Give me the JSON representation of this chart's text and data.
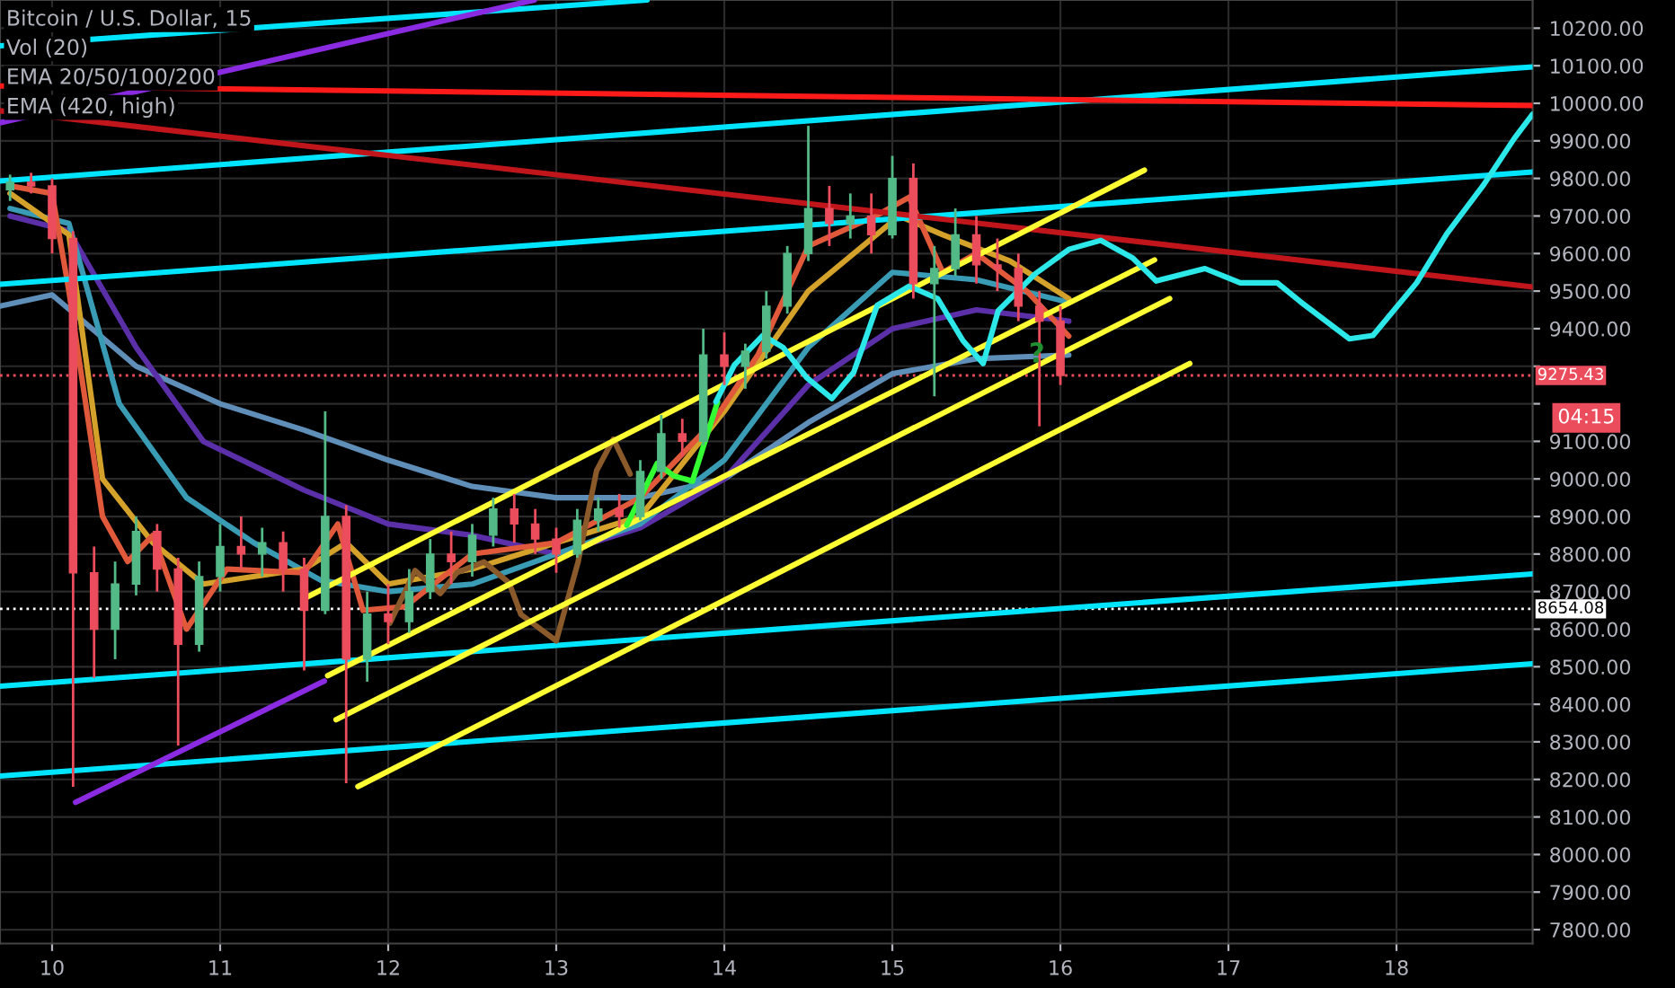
{
  "chart_data": {
    "type": "candlestick",
    "title": "Bitcoin / U.S. Dollar, 15",
    "annotations": [
      "Vol (20)",
      "EMA 20/50/100/200",
      "EMA (420, high)",
      {
        "text": "?",
        "x": 15.86,
        "y": 9330
      },
      "04:15"
    ],
    "x": [
      9.75,
      9.875,
      10.0,
      10.125,
      10.25,
      10.375,
      10.5,
      10.625,
      10.75,
      10.875,
      11.0,
      11.125,
      11.25,
      11.375,
      11.5,
      11.625,
      11.75,
      11.875,
      12.0,
      12.125,
      12.25,
      12.375,
      12.5,
      12.625,
      12.75,
      12.875,
      13.0,
      13.125,
      13.25,
      13.375,
      13.5,
      13.625,
      13.75,
      13.875,
      14.0,
      14.125,
      14.25,
      14.375,
      14.5,
      14.625,
      14.75,
      14.875,
      15.0,
      15.125,
      15.25,
      15.375,
      15.5,
      15.625,
      15.75,
      15.875,
      16.0
    ],
    "ohlc": [
      [
        9770,
        9810,
        9740,
        9790
      ],
      [
        9790,
        9815,
        9760,
        9780
      ],
      [
        9780,
        9800,
        9600,
        9640
      ],
      [
        9640,
        9660,
        8180,
        8750
      ],
      [
        8750,
        8820,
        8470,
        8600
      ],
      [
        8600,
        8780,
        8520,
        8720
      ],
      [
        8720,
        8900,
        8690,
        8860
      ],
      [
        8860,
        8880,
        8700,
        8760
      ],
      [
        8760,
        8790,
        8290,
        8560
      ],
      [
        8560,
        8780,
        8540,
        8740
      ],
      [
        8740,
        8880,
        8700,
        8820
      ],
      [
        8820,
        8900,
        8760,
        8800
      ],
      [
        8800,
        8870,
        8740,
        8830
      ],
      [
        8830,
        8860,
        8700,
        8760
      ],
      [
        8760,
        8790,
        8490,
        8650
      ],
      [
        8650,
        9180,
        8640,
        8900
      ],
      [
        8900,
        8930,
        8190,
        8520
      ],
      [
        8520,
        8700,
        8460,
        8640
      ],
      [
        8640,
        8720,
        8560,
        8620
      ],
      [
        8620,
        8760,
        8590,
        8700
      ],
      [
        8700,
        8840,
        8680,
        8800
      ],
      [
        8800,
        8860,
        8720,
        8780
      ],
      [
        8780,
        8880,
        8740,
        8850
      ],
      [
        8850,
        8950,
        8820,
        8920
      ],
      [
        8920,
        8960,
        8830,
        8880
      ],
      [
        8880,
        8920,
        8800,
        8840
      ],
      [
        8840,
        8870,
        8750,
        8800
      ],
      [
        8800,
        8920,
        8790,
        8890
      ],
      [
        8890,
        8950,
        8860,
        8920
      ],
      [
        8920,
        8960,
        8870,
        8900
      ],
      [
        8900,
        9050,
        8890,
        9020
      ],
      [
        9020,
        9170,
        9000,
        9120
      ],
      [
        9120,
        9160,
        9060,
        9100
      ],
      [
        9100,
        9400,
        9090,
        9330
      ],
      [
        9330,
        9390,
        9250,
        9300
      ],
      [
        9300,
        9360,
        9240,
        9340
      ],
      [
        9340,
        9500,
        9320,
        9460
      ],
      [
        9460,
        9620,
        9440,
        9600
      ],
      [
        9600,
        9940,
        9580,
        9720
      ],
      [
        9720,
        9780,
        9620,
        9680
      ],
      [
        9680,
        9760,
        9640,
        9700
      ],
      [
        9700,
        9760,
        9600,
        9650
      ],
      [
        9650,
        9860,
        9640,
        9800
      ],
      [
        9800,
        9840,
        9480,
        9520
      ],
      [
        9520,
        9620,
        9220,
        9560
      ],
      [
        9560,
        9720,
        9540,
        9650
      ],
      [
        9650,
        9700,
        9520,
        9570
      ],
      [
        9570,
        9640,
        9500,
        9560
      ],
      [
        9560,
        9600,
        9420,
        9460
      ],
      [
        9460,
        9500,
        9140,
        9420
      ],
      [
        9420,
        9460,
        9250,
        9275.43
      ]
    ],
    "colors": [
      "#53b987",
      "#eb4d5c",
      "#eb4d5c",
      "#eb4d5c",
      "#eb4d5c",
      "#53b987",
      "#53b987",
      "#eb4d5c",
      "#eb4d5c",
      "#53b987",
      "#53b987",
      "#eb4d5c",
      "#53b987",
      "#eb4d5c",
      "#eb4d5c",
      "#53b987",
      "#eb4d5c",
      "#53b987",
      "#eb4d5c",
      "#53b987",
      "#53b987",
      "#eb4d5c",
      "#53b987",
      "#53b987",
      "#eb4d5c",
      "#eb4d5c",
      "#eb4d5c",
      "#53b987",
      "#53b987",
      "#eb4d5c",
      "#53b987",
      "#53b987",
      "#eb4d5c",
      "#53b987",
      "#eb4d5c",
      "#53b987",
      "#53b987",
      "#53b987",
      "#53b987",
      "#eb4d5c",
      "#53b987",
      "#eb4d5c",
      "#53b987",
      "#eb4d5c",
      "#53b987",
      "#53b987",
      "#eb4d5c",
      "#eb4d5c",
      "#eb4d5c",
      "#eb4d5c",
      "#eb4d5c"
    ],
    "series": [
      {
        "type": "line",
        "color": "#5f8fb8",
        "x": [
          9.69,
          10.0,
          10.5,
          11.0,
          11.5,
          12.0,
          12.5,
          13.0,
          13.5,
          14.0,
          14.5,
          15.0,
          15.5,
          16.05
        ],
        "values": [
          9460,
          9490,
          9300,
          9200,
          9130,
          9050,
          8980,
          8950,
          8950,
          9000,
          9150,
          9280,
          9320,
          9330
        ]
      },
      {
        "type": "line",
        "color": "#5b2fa8",
        "x": [
          9.75,
          10.1,
          10.5,
          10.9,
          11.5,
          12.0,
          12.5,
          13.0,
          13.5,
          14.0,
          14.5,
          15.0,
          15.5,
          16.05
        ],
        "values": [
          9700,
          9660,
          9350,
          9100,
          8970,
          8880,
          8850,
          8800,
          8870,
          9000,
          9250,
          9400,
          9450,
          9420
        ]
      },
      {
        "type": "line",
        "color": "#3a9bb5",
        "x": [
          9.75,
          10.1,
          10.4,
          10.8,
          11.2,
          11.6,
          12.0,
          12.5,
          13.0,
          13.5,
          14.0,
          14.5,
          15.0,
          15.5,
          16.05
        ],
        "values": [
          9720,
          9680,
          9200,
          8950,
          8830,
          8730,
          8700,
          8720,
          8800,
          8880,
          9050,
          9350,
          9550,
          9530,
          9470
        ]
      },
      {
        "type": "line",
        "color": "#d4a22a",
        "x": [
          9.75,
          10.1,
          10.3,
          10.6,
          10.9,
          11.5,
          11.75,
          12.0,
          12.5,
          13.0,
          13.5,
          14.0,
          14.5,
          15.04,
          15.3,
          15.7,
          16.05
        ],
        "values": [
          9760,
          9650,
          9000,
          8830,
          8720,
          8760,
          8830,
          8720,
          8760,
          8830,
          8900,
          9180,
          9500,
          9700,
          9650,
          9580,
          9480
        ]
      },
      {
        "type": "line",
        "color": "#e0593a",
        "x": [
          9.75,
          10.0,
          10.1,
          10.3,
          10.45,
          10.6,
          10.8,
          11.04,
          11.5,
          11.7,
          11.85,
          12.1,
          12.5,
          13.0,
          13.5,
          13.93,
          14.2,
          14.5,
          14.9,
          15.1,
          15.3,
          15.5,
          15.8,
          16.05
        ],
        "values": [
          9780,
          9760,
          9500,
          8900,
          8780,
          8850,
          8600,
          8760,
          8750,
          8880,
          8650,
          8660,
          8800,
          8830,
          8950,
          9150,
          9330,
          9620,
          9700,
          9750,
          9550,
          9600,
          9500,
          9380
        ]
      },
      {
        "type": "line",
        "color": "#00e5ff",
        "x": [
          9.69,
          13.54
        ],
        "values": [
          10153,
          10275
        ]
      },
      {
        "type": "line",
        "color": "#00e5ff",
        "x": [
          9.69,
          18.81
        ],
        "values": [
          9793,
          10097
        ]
      },
      {
        "type": "line",
        "color": "#00e5ff",
        "x": [
          9.69,
          18.81
        ],
        "values": [
          9518,
          9817
        ]
      },
      {
        "type": "line",
        "color": "#00e5ff",
        "x": [
          9.69,
          18.81
        ],
        "values": [
          8448,
          8747
        ]
      },
      {
        "type": "line",
        "color": "#00e5ff",
        "x": [
          9.69,
          18.81
        ],
        "values": [
          8209,
          8508
        ]
      },
      {
        "type": "line",
        "color": "#ff1a1a",
        "x": [
          9.69,
          18.81
        ],
        "values": [
          10046,
          9994
        ]
      },
      {
        "type": "line",
        "color": "#c0161b",
        "x": [
          9.69,
          18.81
        ],
        "values": [
          9980,
          9511
        ]
      },
      {
        "type": "line",
        "color": "#8a2be2",
        "x": [
          9.69,
          12.87
        ],
        "values": [
          9948,
          10275
        ]
      },
      {
        "type": "line",
        "color": "#8a2be2",
        "x": [
          10.14,
          11.62
        ],
        "values": [
          8139,
          8462
        ]
      },
      {
        "type": "line",
        "color": "#8a5a2b",
        "x": [
          12.01,
          12.16,
          12.31,
          12.41,
          12.57,
          12.72,
          12.79,
          13.0,
          13.13,
          13.24,
          13.34,
          13.44
        ],
        "values": [
          8616,
          8756,
          8695,
          8751,
          8779,
          8723,
          8639,
          8569,
          8779,
          9022,
          9106,
          9013
        ]
      },
      {
        "type": "line",
        "color": "#ffff33",
        "x": [
          11.52,
          16.5
        ],
        "values": [
          8686,
          9822
        ]
      },
      {
        "type": "line",
        "color": "#ffff33",
        "x": [
          11.64,
          16.56
        ],
        "values": [
          8476,
          9583
        ]
      },
      {
        "type": "line",
        "color": "#ffff33",
        "x": [
          11.69,
          16.65
        ],
        "values": [
          8359,
          9480
        ]
      },
      {
        "type": "line",
        "color": "#ffff33",
        "x": [
          11.82,
          16.77
        ],
        "values": [
          8181,
          9307
        ]
      },
      {
        "type": "line",
        "color": "#33ff33",
        "x": [
          13.42,
          13.6,
          13.7,
          13.81,
          13.96
        ],
        "values": [
          8877,
          9041,
          9008,
          8994,
          9205
        ]
      },
      {
        "type": "line",
        "color": "#2de8e8",
        "x": [
          13.95,
          14.06,
          14.23,
          14.35,
          14.49,
          14.64,
          14.77,
          14.91,
          15.1,
          15.27,
          15.42,
          15.54,
          15.63,
          15.85,
          16.05,
          16.24,
          16.43,
          16.57,
          16.86,
          17.07,
          17.29,
          17.43,
          17.72,
          17.86,
          18.12,
          18.3,
          18.52,
          18.7,
          18.81
        ],
        "values": [
          9205,
          9303,
          9382,
          9350,
          9270,
          9214,
          9284,
          9462,
          9513,
          9480,
          9368,
          9307,
          9448,
          9546,
          9611,
          9635,
          9588,
          9527,
          9560,
          9522,
          9522,
          9471,
          9373,
          9382,
          9522,
          9653,
          9784,
          9906,
          9971
        ]
      }
    ],
    "xlim": [
      9.69,
      18.81
    ],
    "xticks": [
      10,
      11,
      12,
      13,
      14,
      15,
      16,
      17,
      18
    ],
    "ylim": [
      7763,
      10275
    ],
    "yticks": [
      {
        "value": 7800,
        "label": "7800.00"
      },
      {
        "value": 7900,
        "label": "7900.00"
      },
      {
        "value": 8000,
        "label": "8000.00"
      },
      {
        "value": 8100,
        "label": "8100.00"
      },
      {
        "value": 8200,
        "label": "8200.00"
      },
      {
        "value": 8300,
        "label": "8300.00"
      },
      {
        "value": 8400,
        "label": "8400.00"
      },
      {
        "value": 8500,
        "label": "8500.00"
      },
      {
        "value": 8600,
        "label": "8600.00"
      },
      {
        "value": 8700,
        "label": "8700.00"
      },
      {
        "value": 8800,
        "label": "8800.00"
      },
      {
        "value": 8900,
        "label": "8900.00"
      },
      {
        "value": 9000,
        "label": "9000.00"
      },
      {
        "value": 9100,
        "label": "9100.00"
      },
      {
        "value": 9200,
        "label": null
      },
      {
        "value": 9300,
        "label": null
      },
      {
        "value": 9400,
        "label": "9400.00"
      },
      {
        "value": 9500,
        "label": "9500.00"
      },
      {
        "value": 9600,
        "label": "9600.00"
      },
      {
        "value": 9700,
        "label": "9700.00"
      },
      {
        "value": 9800,
        "label": "9800.00"
      },
      {
        "value": 9900,
        "label": "9900.00"
      },
      {
        "value": 10000,
        "label": "10000.00"
      },
      {
        "value": 10100,
        "label": "10100.00"
      },
      {
        "value": 10200,
        "label": "10200.00"
      }
    ],
    "grid": true,
    "ref_lines": [
      {
        "axis": "y",
        "value": 9275.43,
        "label": "9275.43",
        "color": "#eb4d5c",
        "line_style": "dotted"
      },
      {
        "axis": "y",
        "value": 8654.08,
        "label": "8654.08",
        "color": "#ffffff",
        "line_style": "dotted"
      }
    ]
  }
}
